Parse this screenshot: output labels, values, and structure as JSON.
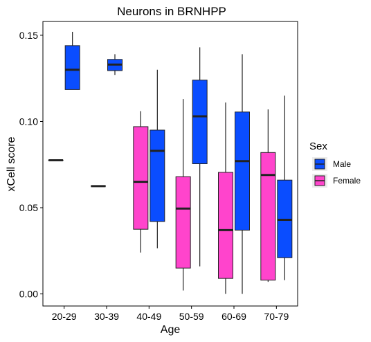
{
  "chart_data": {
    "type": "box",
    "title": "Neurons in BRNHPP",
    "xlabel": "Age",
    "ylabel": "xCell score",
    "categories": [
      "20-29",
      "30-39",
      "40-49",
      "50-59",
      "60-69",
      "70-79"
    ],
    "yticks": [
      0.0,
      0.05,
      0.1,
      0.15
    ],
    "ytick_labels": [
      "0.00",
      "0.05",
      "0.10",
      "0.15"
    ],
    "ylim": [
      -0.007,
      0.158
    ],
    "grid": false,
    "legend": {
      "title": "Sex",
      "position": "right",
      "entries": [
        {
          "label": "Male",
          "color": "#0a4dff"
        },
        {
          "label": "Female",
          "color": "#ff44cc"
        }
      ]
    },
    "series": [
      {
        "name": "Female",
        "color": "#ff44cc",
        "boxes": [
          {
            "category": "20-29",
            "min": 0.0775,
            "q1": 0.0775,
            "median": 0.0775,
            "q3": 0.0775,
            "max": 0.0775
          },
          {
            "category": "30-39",
            "min": 0.0625,
            "q1": 0.0625,
            "median": 0.0625,
            "q3": 0.0625,
            "max": 0.0625
          },
          {
            "category": "40-49",
            "min": 0.024,
            "q1": 0.0375,
            "median": 0.065,
            "q3": 0.097,
            "max": 0.106
          },
          {
            "category": "50-59",
            "min": 0.002,
            "q1": 0.015,
            "median": 0.0495,
            "q3": 0.068,
            "max": 0.113
          },
          {
            "category": "60-69",
            "min": 0.0,
            "q1": 0.009,
            "median": 0.037,
            "q3": 0.0705,
            "max": 0.111
          },
          {
            "category": "70-79",
            "min": 0.007,
            "q1": 0.008,
            "median": 0.069,
            "q3": 0.082,
            "max": 0.107
          }
        ]
      },
      {
        "name": "Male",
        "color": "#0a4dff",
        "boxes": [
          {
            "category": "20-29",
            "min": 0.1185,
            "q1": 0.1185,
            "median": 0.13,
            "q3": 0.144,
            "max": 0.152
          },
          {
            "category": "30-39",
            "min": 0.127,
            "q1": 0.1295,
            "median": 0.133,
            "q3": 0.136,
            "max": 0.139
          },
          {
            "category": "40-49",
            "min": 0.0265,
            "q1": 0.042,
            "median": 0.083,
            "q3": 0.095,
            "max": 0.13
          },
          {
            "category": "50-59",
            "min": 0.016,
            "q1": 0.0755,
            "median": 0.103,
            "q3": 0.124,
            "max": 0.143
          },
          {
            "category": "60-69",
            "min": 0.0,
            "q1": 0.037,
            "median": 0.077,
            "q3": 0.1055,
            "max": 0.139
          },
          {
            "category": "70-79",
            "min": 0.008,
            "q1": 0.021,
            "median": 0.043,
            "q3": 0.066,
            "max": 0.115
          }
        ]
      }
    ]
  }
}
